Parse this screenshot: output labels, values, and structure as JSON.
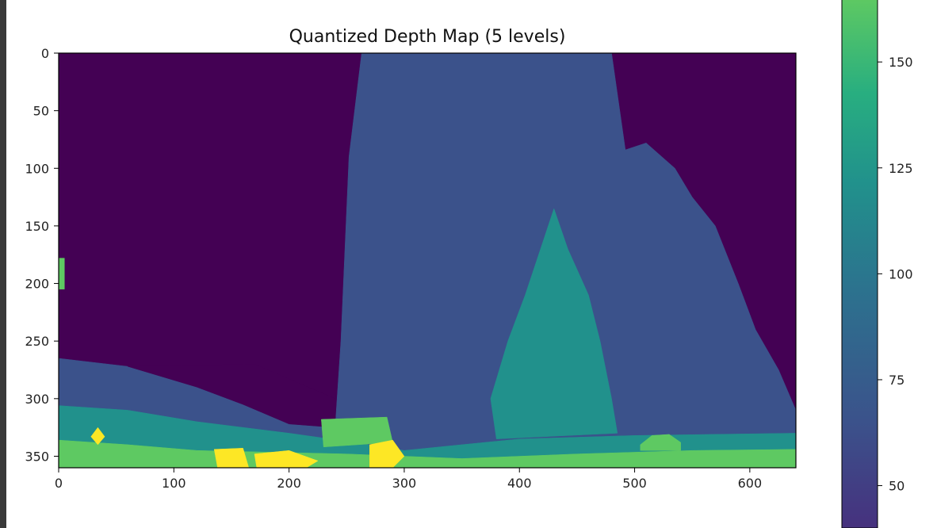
{
  "chart_data": {
    "type": "heatmap",
    "title": "Quantized Depth Map (5 levels)",
    "xlabel": "",
    "ylabel": "",
    "x_ticks": [
      0,
      100,
      200,
      300,
      400,
      500,
      600
    ],
    "y_ticks": [
      0,
      50,
      100,
      150,
      200,
      250,
      300,
      350
    ],
    "xlim": [
      0,
      640
    ],
    "ylim": [
      360,
      0
    ],
    "colormap": "viridis",
    "levels": [
      {
        "value": 0,
        "color": "#440154"
      },
      {
        "value": 47,
        "color": "#3b528b"
      },
      {
        "value": 101,
        "color": "#21918c"
      },
      {
        "value": 153,
        "color": "#5ec962"
      },
      {
        "value": 214,
        "color": "#fde725"
      }
    ],
    "regions": [
      {
        "name": "background",
        "level": 0,
        "points": [
          [
            0,
            0
          ],
          [
            640,
            0
          ],
          [
            640,
            360
          ],
          [
            0,
            360
          ]
        ]
      },
      {
        "name": "tall-structure",
        "level": 47,
        "points": [
          [
            263,
            0
          ],
          [
            480,
            0
          ],
          [
            492,
            84
          ],
          [
            510,
            78
          ],
          [
            535,
            100
          ],
          [
            550,
            125
          ],
          [
            570,
            150
          ],
          [
            590,
            200
          ],
          [
            605,
            240
          ],
          [
            625,
            275
          ],
          [
            640,
            310
          ],
          [
            640,
            360
          ],
          [
            0,
            360
          ],
          [
            0,
            265
          ],
          [
            60,
            272
          ],
          [
            120,
            290
          ],
          [
            160,
            305
          ],
          [
            200,
            322
          ],
          [
            240,
            325
          ],
          [
            245,
            250
          ],
          [
            252,
            90
          ]
        ]
      },
      {
        "name": "left-ramp",
        "level": 0,
        "points": [
          [
            60,
            272
          ],
          [
            170,
            270
          ],
          [
            240,
            300
          ],
          [
            240,
            325
          ],
          [
            200,
            322
          ],
          [
            160,
            305
          ],
          [
            120,
            290
          ]
        ]
      },
      {
        "name": "midground-ground",
        "level": 101,
        "points": [
          [
            0,
            306
          ],
          [
            60,
            310
          ],
          [
            120,
            320
          ],
          [
            200,
            330
          ],
          [
            250,
            337
          ],
          [
            300,
            345
          ],
          [
            350,
            340
          ],
          [
            400,
            335
          ],
          [
            500,
            332
          ],
          [
            640,
            330
          ],
          [
            640,
            360
          ],
          [
            0,
            360
          ]
        ]
      },
      {
        "name": "cone-structure",
        "level": 101,
        "points": [
          [
            430,
            135
          ],
          [
            442,
            170
          ],
          [
            460,
            210
          ],
          [
            470,
            250
          ],
          [
            480,
            300
          ],
          [
            485,
            330
          ],
          [
            380,
            335
          ],
          [
            375,
            300
          ],
          [
            390,
            250
          ],
          [
            405,
            210
          ],
          [
            420,
            165
          ]
        ]
      },
      {
        "name": "foreground-ground",
        "level": 153,
        "points": [
          [
            0,
            336
          ],
          [
            60,
            340
          ],
          [
            120,
            345
          ],
          [
            250,
            348
          ],
          [
            350,
            352
          ],
          [
            450,
            348
          ],
          [
            550,
            345
          ],
          [
            640,
            344
          ],
          [
            640,
            360
          ],
          [
            0,
            360
          ]
        ]
      },
      {
        "name": "foreground-box",
        "level": 153,
        "points": [
          [
            228,
            318
          ],
          [
            285,
            316
          ],
          [
            290,
            338
          ],
          [
            230,
            342
          ]
        ]
      },
      {
        "name": "left-edge-strip",
        "level": 153,
        "points": [
          [
            0,
            178
          ],
          [
            5,
            178
          ],
          [
            5,
            205
          ],
          [
            0,
            205
          ]
        ]
      },
      {
        "name": "bush-right",
        "level": 153,
        "points": [
          [
            505,
            340
          ],
          [
            515,
            332
          ],
          [
            530,
            331
          ],
          [
            540,
            338
          ],
          [
            540,
            345
          ],
          [
            505,
            345
          ]
        ]
      },
      {
        "name": "bright-diamond",
        "level": 214,
        "points": [
          [
            34,
            325
          ],
          [
            40,
            333
          ],
          [
            34,
            340
          ],
          [
            28,
            333
          ]
        ]
      },
      {
        "name": "bright-patch-1",
        "level": 214,
        "points": [
          [
            135,
            344
          ],
          [
            160,
            343
          ],
          [
            165,
            360
          ],
          [
            138,
            360
          ]
        ]
      },
      {
        "name": "bright-patch-2",
        "level": 214,
        "points": [
          [
            170,
            348
          ],
          [
            200,
            345
          ],
          [
            225,
            354
          ],
          [
            215,
            360
          ],
          [
            172,
            360
          ]
        ]
      },
      {
        "name": "bright-patch-3",
        "level": 214,
        "points": [
          [
            270,
            340
          ],
          [
            290,
            336
          ],
          [
            300,
            350
          ],
          [
            290,
            360
          ],
          [
            270,
            360
          ]
        ]
      }
    ],
    "colorbar": {
      "ticks": [
        50,
        75,
        100,
        125,
        150
      ],
      "range": [
        40,
        165
      ]
    }
  }
}
